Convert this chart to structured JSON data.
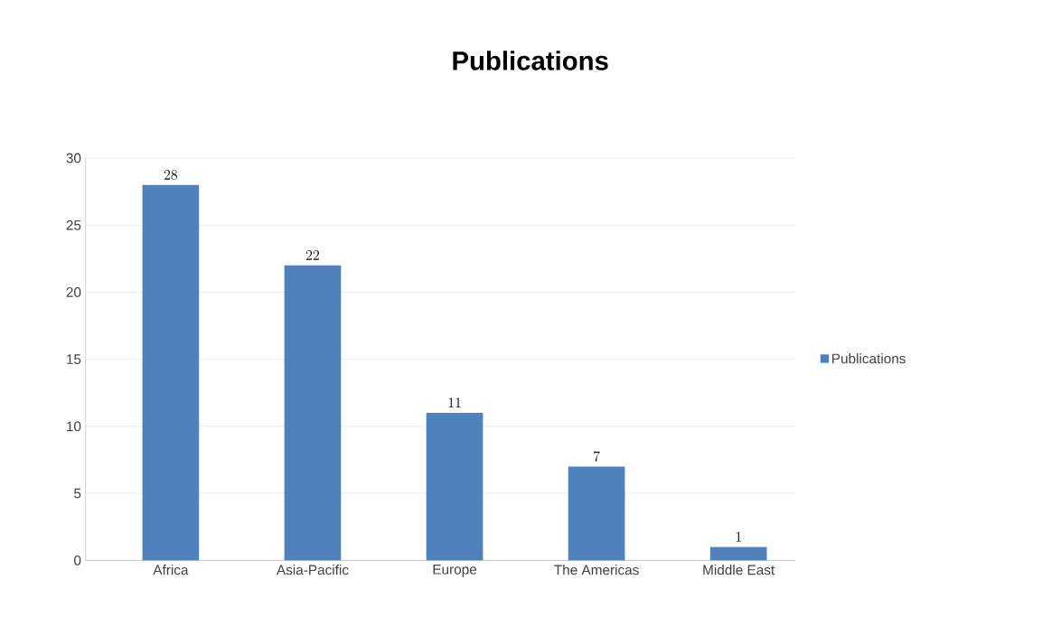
{
  "chart_data": {
    "type": "bar",
    "title": "Publications",
    "categories": [
      "Africa",
      "Asia-Pacific",
      "Europe",
      "The Americas",
      "Middle East"
    ],
    "series": [
      {
        "name": "Publications",
        "color": "#4f81bd",
        "values": [
          28,
          22,
          11,
          7,
          1
        ]
      }
    ],
    "ylim": [
      0,
      30
    ],
    "yticks": [
      0,
      5,
      10,
      15,
      20,
      25,
      30
    ],
    "grid": "y",
    "legend": "right",
    "data_labels": true
  }
}
